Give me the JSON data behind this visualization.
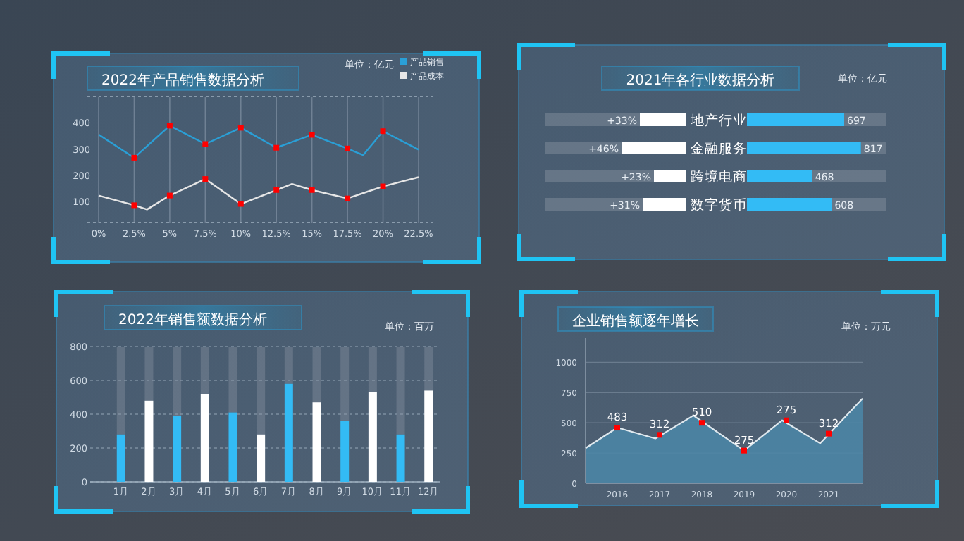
{
  "chart_data": [
    {
      "type": "line",
      "title": "2022年产品销售数据分析",
      "annotations": [
        "单位：亿元"
      ],
      "xlim": [
        0,
        22.5
      ],
      "xticks": [
        {
          "value": 0,
          "label": "0%"
        },
        {
          "value": 2.5,
          "label": "2.5%"
        },
        {
          "value": 5,
          "label": "5%"
        },
        {
          "value": 7.5,
          "label": "7.5%"
        },
        {
          "value": 10,
          "label": "10%"
        },
        {
          "value": 12.5,
          "label": "12.5%"
        },
        {
          "value": 15,
          "label": "15%"
        },
        {
          "value": 17.5,
          "label": "17.5%"
        },
        {
          "value": 20,
          "label": "20%"
        },
        {
          "value": 22.5,
          "label": "22.5%"
        }
      ],
      "ylim": [
        20,
        500
      ],
      "yticks": [
        100,
        200,
        300,
        400
      ],
      "grid": "x",
      "legend": "top right",
      "series": [
        {
          "name": "产品销售",
          "color": "#2a9fd6",
          "x": [
            0,
            2.5,
            5,
            7.5,
            10,
            12.5,
            15,
            17.5,
            18.6,
            20,
            22.5
          ],
          "values": [
            355,
            267,
            389,
            319,
            381,
            305,
            354,
            302,
            277,
            368,
            298
          ]
        },
        {
          "name": "产品成本",
          "color": "#e6e6e6",
          "x": [
            0,
            2.5,
            3.4,
            5,
            7.5,
            10,
            12.5,
            13.6,
            15,
            17.5,
            20,
            22.5
          ],
          "values": [
            123,
            86,
            70,
            123,
            186,
            91,
            144,
            167,
            144,
            112,
            158,
            193
          ]
        },
        {
          "type": "scatter",
          "color": "#ff0000",
          "marker": "square",
          "x": [
            2.5,
            5,
            7.5,
            10,
            12.5,
            15,
            17.5,
            20
          ],
          "values": [
            267,
            389,
            319,
            381,
            305,
            354,
            302,
            368
          ]
        },
        {
          "type": "scatter",
          "color": "#ff0000",
          "marker": "square",
          "x": [
            2.5,
            5,
            7.5,
            10,
            12.5,
            15,
            17.5,
            20
          ],
          "values": [
            86,
            123,
            186,
            91,
            144,
            144,
            112,
            158
          ]
        }
      ]
    },
    {
      "type": "bar",
      "orientation": "horizontal",
      "title": "2021年各行业数据分析",
      "annotations": [
        "单位：亿元"
      ],
      "categories": [
        "地产行业",
        "金融服务",
        "跨境电商",
        "数字货币"
      ],
      "xlim": [
        100,
        0
      ],
      "tick_labels": "y",
      "values": [
        33,
        46,
        23,
        31
      ],
      "color": "#ffffff",
      "value_labels": [
        "+33%",
        "+46%",
        "+23%",
        "+31%"
      ]
    },
    {
      "type": "bar",
      "orientation": "horizontal",
      "xlim": [
        0,
        1000
      ],
      "tick_labels": false,
      "values": [
        697,
        817,
        468,
        608
      ],
      "color": "#33bbf5",
      "data_labels": true
    },
    {
      "type": "bar",
      "title": "2022年销售额数据分析",
      "annotations": [
        "单位：百万"
      ],
      "categories": [
        "1月",
        "2月",
        "3月",
        "4月",
        "5月",
        "6月",
        "7月",
        "8月",
        "9月",
        "10月",
        "11月",
        "12月"
      ],
      "values": [
        280,
        480,
        390,
        520,
        410,
        280,
        580,
        470,
        360,
        530,
        280,
        540
      ],
      "colors": [
        "#33bbf5",
        "#ffffff",
        "#33bbf5",
        "#ffffff",
        "#33bbf5",
        "#ffffff",
        "#33bbf5",
        "#ffffff",
        "#33bbf5",
        "#ffffff",
        "#33bbf5",
        "#ffffff"
      ],
      "ylim": [
        0,
        800
      ],
      "yticks": [
        0,
        200,
        400,
        600,
        800
      ],
      "grid": "y"
    },
    {
      "type": "area",
      "title": "企业销售额逐年增长",
      "annotations": [
        "单位：万元",
        {
          "text": "483",
          "x": 2016,
          "y": 460
        },
        {
          "text": "312",
          "x": 2017,
          "y": 400
        },
        {
          "text": "510",
          "x": 2018,
          "y": 500
        },
        {
          "text": "275",
          "x": 2019,
          "y": 270
        },
        {
          "text": "275",
          "x": 2020,
          "y": 520
        },
        {
          "text": "312",
          "x": 2021,
          "y": 410
        }
      ],
      "xlim": [
        2015.25,
        2021.8
      ],
      "xticks": [
        2016,
        2017,
        2018,
        2019,
        2020,
        2021
      ],
      "ylim": [
        0,
        1200
      ],
      "yticks": [
        0,
        250,
        500,
        750,
        1000
      ],
      "grid": "y",
      "series": [
        {
          "color": "#4b87a8",
          "x": [
            2015.25,
            2016,
            2016.9,
            2017.8,
            2019,
            2019.9,
            2020.8,
            2021.8
          ],
          "values": [
            290,
            460,
            370,
            560,
            270,
            520,
            330,
            700
          ]
        },
        {
          "type": "scatter",
          "color": "#ff0000",
          "marker": "square",
          "x": [
            2016,
            2017,
            2018,
            2019,
            2020,
            2021
          ],
          "values": [
            460,
            400,
            500,
            270,
            520,
            410
          ]
        }
      ]
    }
  ]
}
